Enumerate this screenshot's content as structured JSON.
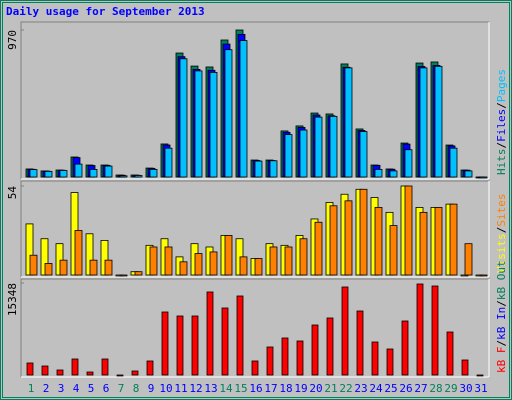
{
  "chart_data": [
    {
      "type": "bar",
      "title": "Daily usage for September 2013",
      "title_color": "#0000ff",
      "categories": [
        "1",
        "2",
        "3",
        "4",
        "5",
        "6",
        "7",
        "8",
        "9",
        "10",
        "11",
        "12",
        "13",
        "14",
        "15",
        "16",
        "17",
        "18",
        "19",
        "20",
        "21",
        "22",
        "23",
        "24",
        "25",
        "26",
        "27",
        "28",
        "29",
        "30",
        "31"
      ],
      "category_colors": [
        "#00805c",
        "#0000ff",
        "#0000ff",
        "#0000ff",
        "#0000ff",
        "#0000ff",
        "#00805c",
        "#00805c",
        "#0000ff",
        "#0000ff",
        "#0000ff",
        "#0000ff",
        "#0000ff",
        "#00805c",
        "#00805c",
        "#0000ff",
        "#0000ff",
        "#0000ff",
        "#0000ff",
        "#0000ff",
        "#00805c",
        "#00805c",
        "#0000ff",
        "#0000ff",
        "#0000ff",
        "#0000ff",
        "#0000ff",
        "#00805c",
        "#00805c",
        "#0000ff",
        "#0000ff"
      ],
      "ylim": [
        0,
        970
      ],
      "yticks": [
        970
      ],
      "separator": "/",
      "series": [
        {
          "name": "Hits",
          "color": "#00805c",
          "values": [
            53,
            40,
            46,
            132,
            79,
            79,
            13,
            13,
            59,
            218,
            818,
            732,
            726,
            904,
            970,
            112,
            112,
            304,
            337,
            422,
            416,
            746,
            317,
            79,
            53,
            224,
            752,
            759,
            211,
            46,
            0
          ]
        },
        {
          "name": "Files",
          "color": "#0000ff",
          "values": [
            51,
            39,
            45,
            128,
            76,
            77,
            12,
            12,
            57,
            211,
            794,
            710,
            704,
            877,
            941,
            109,
            109,
            295,
            327,
            409,
            404,
            724,
            307,
            77,
            51,
            217,
            729,
            736,
            205,
            45,
            0
          ]
        },
        {
          "name": "Pages",
          "color": "#00c0ff",
          "values": [
            49,
            37,
            43,
            85,
            50,
            72,
            8,
            10,
            50,
            190,
            780,
            700,
            690,
            840,
            900,
            105,
            107,
            280,
            310,
            395,
            400,
            720,
            300,
            50,
            40,
            180,
            720,
            730,
            190,
            40,
            0
          ]
        }
      ]
    },
    {
      "type": "bar",
      "ylim": [
        0,
        54
      ],
      "yticks": [
        54
      ],
      "series": [
        {
          "name": "Visits",
          "color": "#ffff00",
          "values": [
            31,
            22,
            19,
            50,
            25,
            21,
            0,
            2,
            18,
            22,
            11,
            19,
            17,
            24,
            22,
            10,
            19,
            18,
            24,
            34,
            44,
            49,
            52,
            47,
            38,
            54,
            41,
            41,
            43,
            0,
            0
          ]
        },
        {
          "name": "Sites",
          "color": "#ff8000",
          "values": [
            12,
            7,
            9,
            27,
            9,
            9,
            0,
            2,
            17,
            17,
            8,
            13,
            14,
            24,
            11,
            10,
            17,
            17,
            22,
            32,
            42,
            45,
            52,
            41,
            30,
            54,
            38,
            41,
            43,
            19,
            0
          ]
        }
      ]
    },
    {
      "type": "bar",
      "ylim": [
        0,
        15348
      ],
      "yticks": [
        15348
      ],
      "series": [
        {
          "name": "kB F",
          "color": "#ff0000",
          "values": [
            2002,
            1501,
            834,
            2669,
            500,
            2669,
            0,
            667,
            2336,
            10510,
            9843,
            9843,
            13847,
            11178,
            13179,
            2336,
            4671,
            6173,
            5672,
            8341,
            9509,
            14681,
            10677,
            5505,
            4337,
            9008,
            15181,
            14847,
            7173,
            2502,
            0
          ]
        },
        {
          "name": "kB In",
          "color": "#0000ff",
          "values": []
        },
        {
          "name": "kB Out",
          "color": "#00805c",
          "values": []
        }
      ]
    }
  ]
}
